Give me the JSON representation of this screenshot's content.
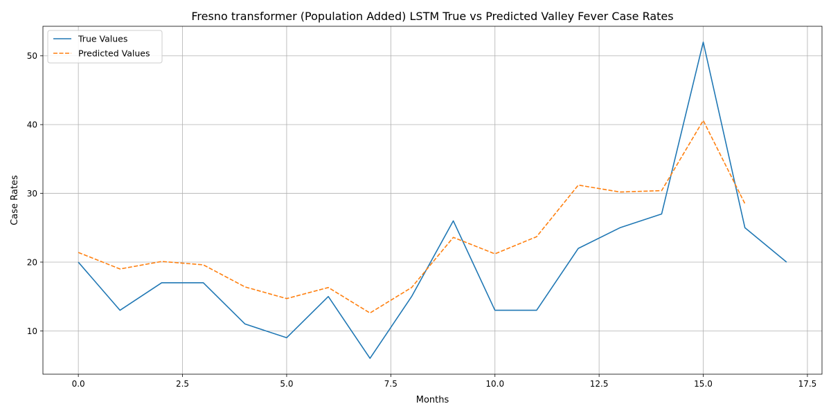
{
  "chart_data": {
    "type": "line",
    "title": "Fresno transformer (Population Added) LSTM True vs Predicted Valley Fever Case Rates",
    "xlabel": "Months",
    "ylabel": "Case Rates",
    "xlim": [
      -0.85,
      17.85
    ],
    "ylim": [
      3.7,
      54.3
    ],
    "xticks": [
      0.0,
      2.5,
      5.0,
      7.5,
      10.0,
      12.5,
      15.0,
      17.5
    ],
    "xtick_labels": [
      "0.0",
      "2.5",
      "5.0",
      "7.5",
      "10.0",
      "12.5",
      "15.0",
      "17.5"
    ],
    "yticks": [
      10,
      20,
      30,
      40,
      50
    ],
    "ytick_labels": [
      "10",
      "20",
      "30",
      "40",
      "50"
    ],
    "grid": true,
    "legend_position": "top-left",
    "series": [
      {
        "name": "True Values",
        "color": "#1f77b4",
        "style": "solid",
        "x": [
          0,
          1,
          2,
          3,
          4,
          5,
          6,
          7,
          8,
          9,
          10,
          11,
          12,
          13,
          14,
          15,
          16,
          17
        ],
        "values": [
          20,
          13,
          17,
          17,
          11,
          9,
          15,
          6,
          15,
          26,
          13,
          13,
          22,
          25,
          27,
          52,
          25,
          20
        ]
      },
      {
        "name": "Predicted Values",
        "color": "#ff7f0e",
        "style": "dashed",
        "x": [
          0,
          1,
          2,
          3,
          4,
          5,
          6,
          7,
          8,
          9,
          10,
          11,
          12,
          13,
          14,
          15,
          16
        ],
        "values": [
          21.4,
          19.0,
          20.1,
          19.6,
          16.4,
          14.7,
          16.3,
          12.6,
          16.3,
          23.6,
          21.2,
          23.7,
          31.2,
          30.2,
          30.4,
          40.6,
          28.5
        ]
      }
    ]
  }
}
